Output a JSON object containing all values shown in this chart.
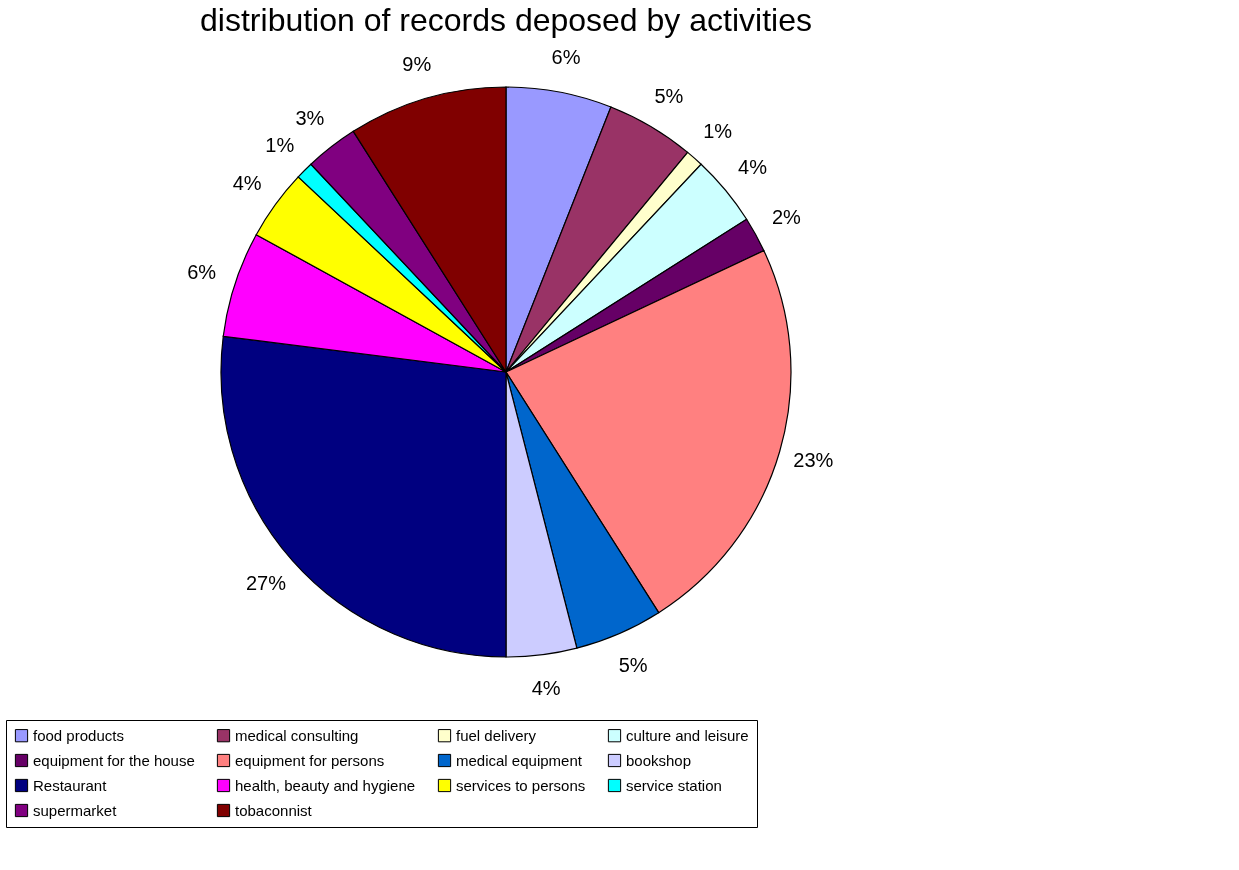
{
  "chart_data": {
    "type": "pie",
    "title": "distribution of  records deposed by activities",
    "categories": [
      "food products",
      "medical consulting",
      "fuel delivery",
      "culture and leisure",
      "equipment for the house",
      "equipment for persons",
      "medical equipment",
      "bookshop",
      "Restaurant",
      "health, beauty and hygiene",
      "services to persons",
      "service station",
      "supermarket",
      "tobaconnist"
    ],
    "values": [
      6,
      5,
      1,
      4,
      2,
      23,
      5,
      4,
      27,
      6,
      4,
      1,
      3,
      9
    ],
    "value_labels": [
      "6%",
      "5%",
      "1%",
      "4%",
      "2%",
      "23%",
      "5%",
      "4%",
      "27%",
      "6%",
      "4%",
      "1%",
      "3%",
      "9%"
    ],
    "colors": [
      "#9999ff",
      "#993366",
      "#ffffcc",
      "#ccffff",
      "#660066",
      "#ff8080",
      "#0066cc",
      "#ccccff",
      "#000080",
      "#ff00ff",
      "#ffff00",
      "#00ffff",
      "#800080",
      "#800000"
    ],
    "legend": "bottom"
  }
}
